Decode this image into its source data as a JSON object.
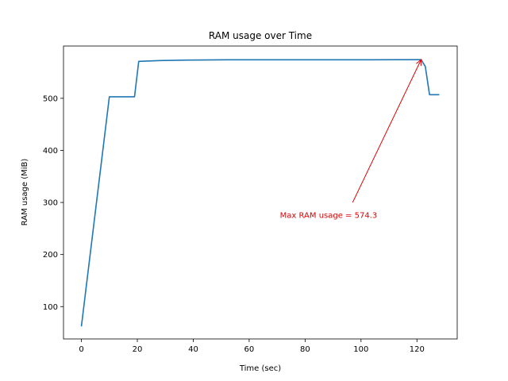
{
  "chart_data": {
    "type": "line",
    "title": "RAM usage over Time",
    "xlabel": "Time (sec)",
    "ylabel": "RAM usage (MiB)",
    "xlim": [
      -6.4,
      134.4
    ],
    "ylim": [
      37.9,
      600.4
    ],
    "xticks": [
      0,
      20,
      40,
      60,
      80,
      100,
      120
    ],
    "yticks": [
      100,
      200,
      300,
      400,
      500
    ],
    "grid": false,
    "series": [
      {
        "color": "#1f77b4",
        "x": [
          0,
          10,
          19,
          20.5,
          28,
          38,
          52,
          70,
          90,
          103,
          121.5,
          123,
          124.5,
          128
        ],
        "y": [
          62,
          503,
          503,
          571,
          572.5,
          573.5,
          574,
          574,
          574,
          574,
          574.3,
          561,
          507,
          507
        ]
      }
    ],
    "annotation": {
      "text": "Max RAM usage = 574.3",
      "color": "#e00000",
      "text_x": 71,
      "text_y": 270,
      "target_x": 121.5,
      "target_y": 574.3,
      "arrow_start_x": 97,
      "arrow_start_y": 300
    }
  }
}
